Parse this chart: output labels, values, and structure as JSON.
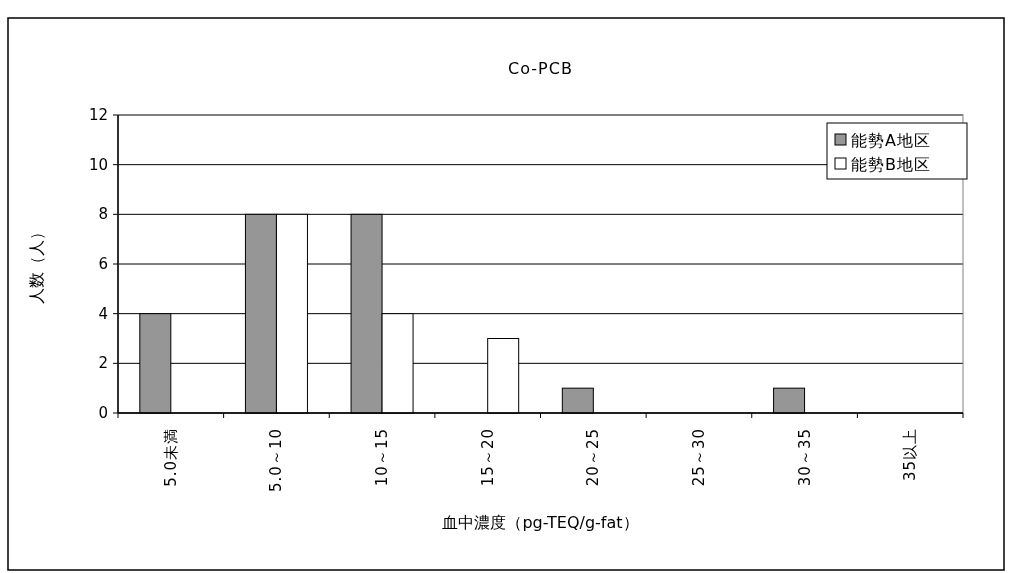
{
  "chart_data": {
    "type": "bar",
    "title": "Co-PCB",
    "xlabel": "血中濃度（pg-TEQ/g-fat）",
    "ylabel": "人数（人）",
    "categories": [
      "5.0未満",
      "5.0～10",
      "10～15",
      "15～20",
      "20～25",
      "25～30",
      "30～35",
      "35以上"
    ],
    "series": [
      {
        "name": "能勢A地区",
        "color": "#969696",
        "values": [
          4,
          8,
          8,
          0,
          1,
          0,
          1,
          0
        ]
      },
      {
        "name": "能勢B地区",
        "color": "#ffffff",
        "values": [
          0,
          8,
          4,
          3,
          0,
          0,
          0,
          0
        ]
      }
    ],
    "ylim": [
      0,
      12
    ],
    "yticks": [
      0,
      2,
      4,
      6,
      8,
      10,
      12
    ],
    "grid": "y",
    "legend": "top right"
  }
}
